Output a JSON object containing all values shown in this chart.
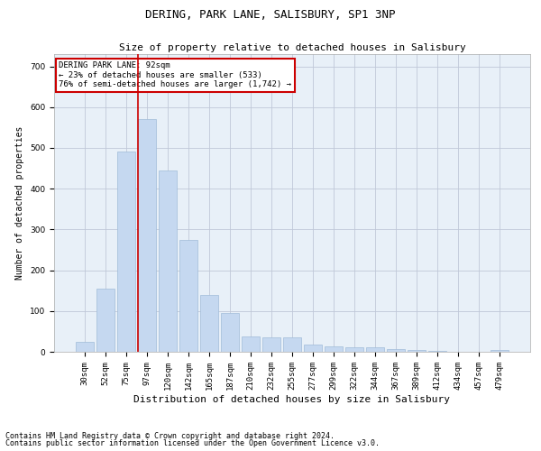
{
  "title": "DERING, PARK LANE, SALISBURY, SP1 3NP",
  "subtitle": "Size of property relative to detached houses in Salisbury",
  "xlabel": "Distribution of detached houses by size in Salisbury",
  "ylabel": "Number of detached properties",
  "categories": [
    "30sqm",
    "52sqm",
    "75sqm",
    "97sqm",
    "120sqm",
    "142sqm",
    "165sqm",
    "187sqm",
    "210sqm",
    "232sqm",
    "255sqm",
    "277sqm",
    "299sqm",
    "322sqm",
    "344sqm",
    "367sqm",
    "389sqm",
    "412sqm",
    "434sqm",
    "457sqm",
    "479sqm"
  ],
  "values": [
    25,
    155,
    490,
    570,
    445,
    275,
    140,
    95,
    37,
    35,
    35,
    18,
    14,
    12,
    10,
    6,
    4,
    3,
    1,
    1,
    5
  ],
  "bar_color": "#c5d8f0",
  "bar_edge_color": "#a0bcd8",
  "vline_x_index": 3,
  "vline_color": "#cc0000",
  "annotation_text": "DERING PARK LANE: 92sqm\n← 23% of detached houses are smaller (533)\n76% of semi-detached houses are larger (1,742) →",
  "annotation_box_color": "#ffffff",
  "annotation_box_edge_color": "#cc0000",
  "ylim": [
    0,
    730
  ],
  "yticks": [
    0,
    100,
    200,
    300,
    400,
    500,
    600,
    700
  ],
  "background_color": "#ffffff",
  "axes_bg_color": "#e8f0f8",
  "grid_color": "#c0c8d8",
  "footer_line1": "Contains HM Land Registry data © Crown copyright and database right 2024.",
  "footer_line2": "Contains public sector information licensed under the Open Government Licence v3.0.",
  "title_fontsize": 9,
  "subtitle_fontsize": 8,
  "xlabel_fontsize": 8,
  "ylabel_fontsize": 7,
  "tick_fontsize": 6.5,
  "annot_fontsize": 6.5,
  "footer_fontsize": 6
}
